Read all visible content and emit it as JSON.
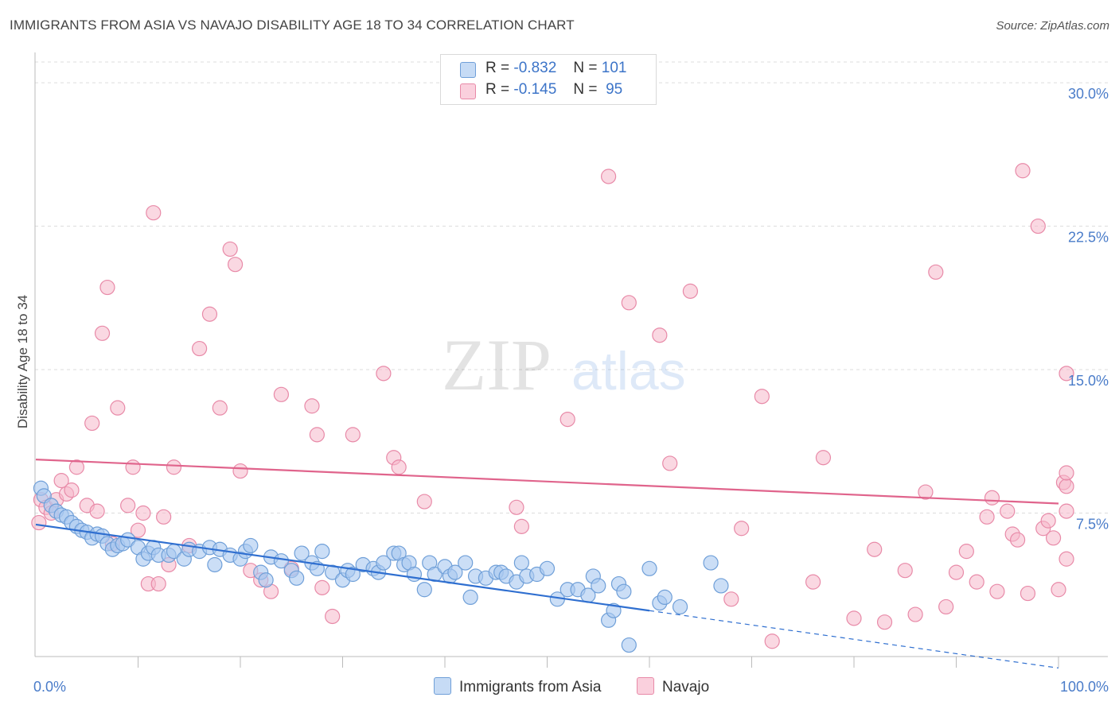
{
  "header": {
    "title": "IMMIGRANTS FROM ASIA VS NAVAJO DISABILITY AGE 18 TO 34 CORRELATION CHART",
    "source": "Source: ZipAtlas.com"
  },
  "legend": {
    "rows": [
      {
        "r_label": "R =",
        "r_value": "-0.832",
        "n_label": "N =",
        "n_value": "101"
      },
      {
        "r_label": "R =",
        "r_value": "-0.145",
        "n_label": "N =",
        "n_value": "95"
      }
    ]
  },
  "bottom_legend": {
    "series_a": "Immigrants from Asia",
    "series_b": "Navajo"
  },
  "watermark": {
    "zip": "ZIP",
    "atlas": "atlas"
  },
  "colors": {
    "blue_fill": "#a8c8f0",
    "blue_stroke": "#6f9fd8",
    "blue_line": "#2f6fd0",
    "pink_fill": "#f6b8cb",
    "pink_stroke": "#e88aa8",
    "pink_line": "#e0648c",
    "tick_text": "#4a7cc9",
    "grid": "#dddddd"
  },
  "chart_data": {
    "type": "scatter",
    "title": "IMMIGRANTS FROM ASIA VS NAVAJO DISABILITY AGE 18 TO 34 CORRELATION CHART",
    "xlabel": "",
    "ylabel": "Disability Age 18 to 34",
    "xlim": [
      0,
      100
    ],
    "ylim": [
      0,
      31
    ],
    "x_tick_labels": [
      "0.0%",
      "100.0%"
    ],
    "y_ticks": [
      7.5,
      15.0,
      22.5,
      30.0
    ],
    "y_tick_labels": [
      "7.5%",
      "15.0%",
      "22.5%",
      "30.0%"
    ],
    "grid": true,
    "legend_position": "top-center",
    "series": [
      {
        "name": "Immigrants from Asia",
        "r": -0.832,
        "n": 101,
        "trend": {
          "x0": 0,
          "y0": 6.9,
          "x1": 60,
          "y1": 2.4,
          "dash_to_x": 100,
          "dash_to_y": -0.6
        },
        "points": [
          [
            0.5,
            8.8
          ],
          [
            0.8,
            8.4
          ],
          [
            1.5,
            7.9
          ],
          [
            2,
            7.6
          ],
          [
            2.5,
            7.4
          ],
          [
            3,
            7.3
          ],
          [
            3.5,
            7.0
          ],
          [
            4,
            6.8
          ],
          [
            4.5,
            6.6
          ],
          [
            5,
            6.5
          ],
          [
            5.5,
            6.2
          ],
          [
            6,
            6.4
          ],
          [
            6.5,
            6.3
          ],
          [
            7,
            5.9
          ],
          [
            7.5,
            5.6
          ],
          [
            8,
            5.8
          ],
          [
            8.5,
            5.9
          ],
          [
            9,
            6.1
          ],
          [
            10,
            5.7
          ],
          [
            10.5,
            5.1
          ],
          [
            11,
            5.4
          ],
          [
            11.5,
            5.7
          ],
          [
            12,
            5.3
          ],
          [
            13,
            5.3
          ],
          [
            13.5,
            5.5
          ],
          [
            14.5,
            5.1
          ],
          [
            15,
            5.6
          ],
          [
            16,
            5.5
          ],
          [
            17,
            5.7
          ],
          [
            17.5,
            4.8
          ],
          [
            18,
            5.6
          ],
          [
            19,
            5.3
          ],
          [
            20,
            5.1
          ],
          [
            20.5,
            5.5
          ],
          [
            21,
            5.8
          ],
          [
            22,
            4.4
          ],
          [
            22.5,
            4.0
          ],
          [
            23,
            5.2
          ],
          [
            24,
            5.0
          ],
          [
            25,
            4.5
          ],
          [
            25.5,
            4.1
          ],
          [
            26,
            5.4
          ],
          [
            27,
            4.9
          ],
          [
            27.5,
            4.6
          ],
          [
            28,
            5.5
          ],
          [
            29,
            4.4
          ],
          [
            30,
            4.0
          ],
          [
            30.5,
            4.5
          ],
          [
            31,
            4.3
          ],
          [
            32,
            4.8
          ],
          [
            33,
            4.6
          ],
          [
            33.5,
            4.4
          ],
          [
            34,
            4.9
          ],
          [
            35,
            5.4
          ],
          [
            35.5,
            5.4
          ],
          [
            36,
            4.8
          ],
          [
            36.5,
            4.9
          ],
          [
            37,
            4.3
          ],
          [
            38,
            3.5
          ],
          [
            38.5,
            4.9
          ],
          [
            39,
            4.3
          ],
          [
            40,
            4.7
          ],
          [
            40.5,
            4.2
          ],
          [
            41,
            4.4
          ],
          [
            42,
            4.9
          ],
          [
            42.5,
            3.1
          ],
          [
            43,
            4.2
          ],
          [
            44,
            4.1
          ],
          [
            45,
            4.4
          ],
          [
            45.5,
            4.4
          ],
          [
            46,
            4.2
          ],
          [
            47,
            3.9
          ],
          [
            47.5,
            4.9
          ],
          [
            48,
            4.2
          ],
          [
            49,
            4.3
          ],
          [
            50,
            4.6
          ],
          [
            51,
            3.0
          ],
          [
            52,
            3.5
          ],
          [
            53,
            3.5
          ],
          [
            54,
            3.2
          ],
          [
            54.5,
            4.2
          ],
          [
            55,
            3.7
          ],
          [
            56,
            1.9
          ],
          [
            56.5,
            2.4
          ],
          [
            57,
            3.8
          ],
          [
            57.5,
            3.4
          ],
          [
            58,
            0.6
          ],
          [
            60,
            4.6
          ],
          [
            61,
            2.8
          ],
          [
            61.5,
            3.1
          ],
          [
            63,
            2.6
          ],
          [
            66,
            4.9
          ],
          [
            67,
            3.7
          ]
        ]
      },
      {
        "name": "Navajo",
        "r": -0.145,
        "n": 95,
        "trend": {
          "x0": 0,
          "y0": 10.3,
          "x1": 100,
          "y1": 8.0
        },
        "points": [
          [
            0.3,
            7.0
          ],
          [
            0.5,
            8.2
          ],
          [
            1,
            7.8
          ],
          [
            1.5,
            7.5
          ],
          [
            2,
            8.2
          ],
          [
            2.5,
            9.2
          ],
          [
            3,
            8.5
          ],
          [
            3.5,
            8.7
          ],
          [
            4,
            9.9
          ],
          [
            5,
            7.9
          ],
          [
            5.5,
            12.2
          ],
          [
            6,
            7.6
          ],
          [
            6.5,
            16.9
          ],
          [
            7,
            19.3
          ],
          [
            7.5,
            5.9
          ],
          [
            8,
            13.0
          ],
          [
            9,
            7.9
          ],
          [
            9.5,
            9.9
          ],
          [
            10,
            6.6
          ],
          [
            10.5,
            7.5
          ],
          [
            11,
            3.8
          ],
          [
            11.5,
            23.2
          ],
          [
            12,
            3.8
          ],
          [
            12.5,
            7.3
          ],
          [
            13,
            4.8
          ],
          [
            13.5,
            9.9
          ],
          [
            15,
            5.8
          ],
          [
            16,
            16.1
          ],
          [
            17,
            17.9
          ],
          [
            18,
            13.0
          ],
          [
            19,
            21.3
          ],
          [
            19.5,
            20.5
          ],
          [
            20,
            9.7
          ],
          [
            21,
            4.5
          ],
          [
            22,
            4.0
          ],
          [
            23,
            3.4
          ],
          [
            24,
            13.7
          ],
          [
            25,
            4.6
          ],
          [
            27,
            13.1
          ],
          [
            27.5,
            11.6
          ],
          [
            28,
            3.6
          ],
          [
            29,
            2.1
          ],
          [
            31,
            11.6
          ],
          [
            34,
            14.8
          ],
          [
            35,
            10.4
          ],
          [
            35.5,
            9.9
          ],
          [
            38,
            8.1
          ],
          [
            47,
            7.8
          ],
          [
            47.5,
            6.8
          ],
          [
            52,
            12.4
          ],
          [
            56,
            25.1
          ],
          [
            58,
            18.5
          ],
          [
            61,
            16.8
          ],
          [
            62,
            10.1
          ],
          [
            64,
            19.1
          ],
          [
            68,
            3.0
          ],
          [
            69,
            6.7
          ],
          [
            71,
            13.6
          ],
          [
            72,
            0.8
          ],
          [
            76,
            3.9
          ],
          [
            77,
            10.4
          ],
          [
            80,
            2.0
          ],
          [
            82,
            5.6
          ],
          [
            83,
            1.8
          ],
          [
            85,
            4.5
          ],
          [
            86,
            2.2
          ],
          [
            87,
            8.6
          ],
          [
            88,
            20.1
          ],
          [
            89,
            2.6
          ],
          [
            90,
            4.4
          ],
          [
            91,
            5.5
          ],
          [
            92,
            3.9
          ],
          [
            93,
            7.3
          ],
          [
            93.5,
            8.3
          ],
          [
            94,
            3.4
          ],
          [
            95,
            7.6
          ],
          [
            95.5,
            6.4
          ],
          [
            96,
            6.1
          ],
          [
            96.5,
            25.4
          ],
          [
            97,
            3.3
          ],
          [
            98,
            22.5
          ],
          [
            98.5,
            6.7
          ],
          [
            99,
            7.1
          ],
          [
            99.5,
            6.2
          ],
          [
            100,
            3.5
          ],
          [
            100.5,
            9.1
          ],
          [
            101,
            14.8
          ],
          [
            101.5,
            5.1
          ],
          [
            102,
            8.9
          ],
          [
            102.5,
            7.6
          ],
          [
            103,
            9.6
          ]
        ]
      }
    ]
  }
}
